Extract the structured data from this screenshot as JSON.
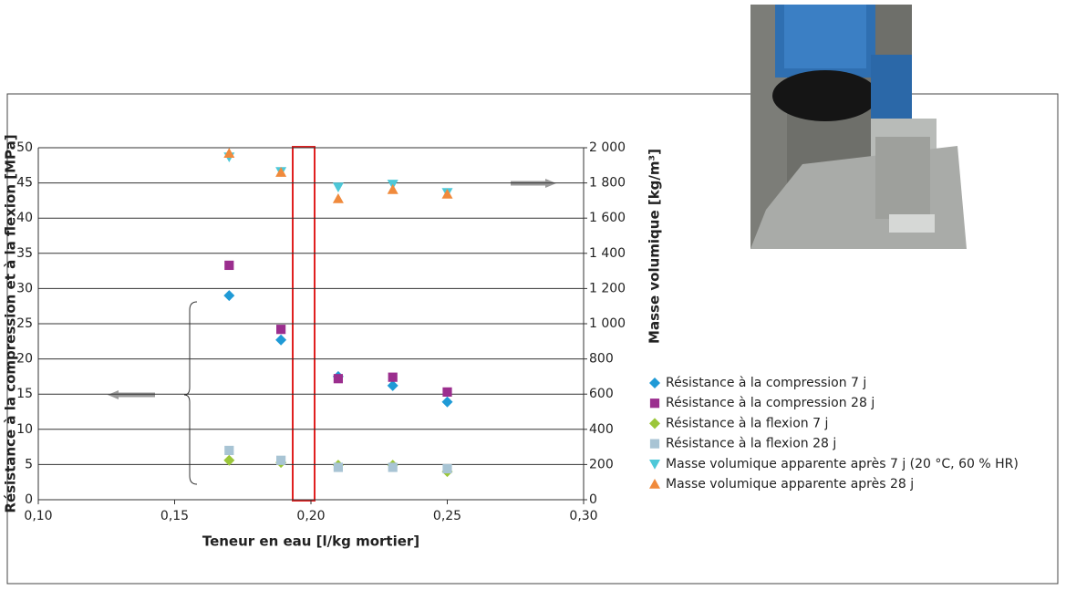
{
  "chart_data": {
    "type": "scatter",
    "x_label": "Teneur en eau [l/kg mortier]",
    "y_label": "Résistance à la compression et à la flexion [MPa]",
    "y2_label": "Masse volumique [kg/m³]",
    "x": [
      0.17,
      0.189,
      0.21,
      0.23,
      0.25
    ],
    "xlim": [
      0.1,
      0.3
    ],
    "xticks": [
      {
        "value": 0.1,
        "label": "0,10"
      },
      {
        "value": 0.15,
        "label": "0,15"
      },
      {
        "value": 0.2,
        "label": "0,20"
      },
      {
        "value": 0.25,
        "label": "0,25"
      },
      {
        "value": 0.3,
        "label": "0,30"
      }
    ],
    "ylim": [
      0,
      50
    ],
    "yticks": [
      0,
      5,
      10,
      15,
      20,
      25,
      30,
      35,
      40,
      45,
      50
    ],
    "y2lim": [
      0,
      2000
    ],
    "y2ticks": [
      0,
      200,
      400,
      600,
      800,
      {
        "value": 1000,
        "label": "1 000"
      },
      {
        "value": 1200,
        "label": "1 200"
      },
      {
        "value": 1400,
        "label": "1 400"
      },
      {
        "value": 1600,
        "label": "1 600"
      },
      {
        "value": 1800,
        "label": "1 800"
      },
      {
        "value": 2000,
        "label": "2 000"
      }
    ],
    "grid": true,
    "series": [
      {
        "name": "Résistance à la compression 7 j",
        "color": "#1f9ad6",
        "marker": "diamond",
        "values": [
          29,
          22.7,
          17.5,
          16.2,
          13.9
        ]
      },
      {
        "name": "Résistance à la compression 28 j",
        "color": "#9b2e8e",
        "marker": "square",
        "values": [
          33.3,
          24.2,
          17.2,
          17.4,
          15.3
        ]
      },
      {
        "name": "Résistance à la flexion 7 j",
        "color": "#9bc63a",
        "marker": "diamond",
        "values": [
          5.6,
          5.3,
          4.9,
          4.9,
          4.0
        ]
      },
      {
        "name": "Résistance à la flexion 28 j",
        "color": "#a8c4d4",
        "marker": "square",
        "values": [
          7.0,
          5.6,
          4.6,
          4.6,
          4.4
        ]
      },
      {
        "name": "Masse volumique apparente après 7 j (20 °C, 60 % HR)",
        "color": "#4dc8d8",
        "marker": "triangle-down",
        "axis": "y2",
        "values": [
          1948,
          1865,
          1777,
          1793,
          1746
        ]
      },
      {
        "name": "Masse volumique apparente après 28 j",
        "color": "#f08a3c",
        "marker": "triangle-up",
        "axis": "y2",
        "values": [
          1968,
          1860,
          1710,
          1762,
          1736
        ]
      }
    ]
  }
}
